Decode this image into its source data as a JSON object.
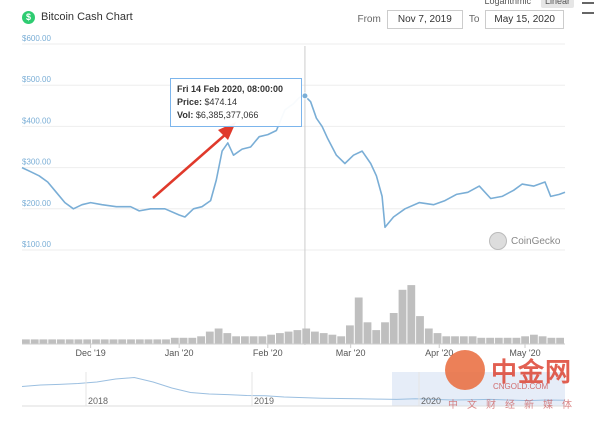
{
  "header": {
    "title": "Bitcoin Cash Chart",
    "logo_glyph": "$",
    "scale_options": [
      "Logarithmic",
      "Linear"
    ],
    "active_scale": "Linear",
    "from_label": "From",
    "to_label": "To",
    "from_value": "Nov 7, 2019",
    "to_value": "May 15, 2020"
  },
  "tooltip": {
    "date": "Fri 14 Feb 2020, 08:00:00",
    "price_label": "Price:",
    "price_value": "$474.14",
    "vol_label": "Vol:",
    "vol_value": "$6,385,377,066"
  },
  "watermark": {
    "coingecko": "CoinGecko",
    "cngold_name": "中金网",
    "cngold_url": "CNGOLD.COM",
    "cngold_slogan": "中文财经新媒体"
  },
  "colors": {
    "line": "#7aaed6",
    "volume": "#bfbfbf",
    "arrow": "#e0392b",
    "nav_mask": "#dbe5f5"
  },
  "chart_data": {
    "type": "line",
    "title": "Bitcoin Cash Chart",
    "ylim": [
      100,
      600
    ],
    "yticks": [
      100,
      200,
      300,
      400,
      500,
      600
    ],
    "ytick_labels": [
      "$100.00",
      "$200.00",
      "$300.00",
      "$400.00",
      "$500.00",
      "$600.00"
    ],
    "xticks": [
      "Dec '19",
      "Jan '20",
      "Feb '20",
      "Mar '20",
      "Apr '20",
      "May '20"
    ],
    "x_range": [
      "2019-11-07",
      "2020-05-15"
    ],
    "price_series": {
      "x": [
        "2019-11-07",
        "2019-11-10",
        "2019-11-13",
        "2019-11-16",
        "2019-11-19",
        "2019-11-22",
        "2019-11-25",
        "2019-11-28",
        "2019-12-01",
        "2019-12-05",
        "2019-12-10",
        "2019-12-15",
        "2019-12-18",
        "2019-12-22",
        "2019-12-27",
        "2020-01-01",
        "2020-01-03",
        "2020-01-06",
        "2020-01-09",
        "2020-01-12",
        "2020-01-14",
        "2020-01-16",
        "2020-01-18",
        "2020-01-20",
        "2020-01-23",
        "2020-01-26",
        "2020-01-29",
        "2020-02-01",
        "2020-02-04",
        "2020-02-07",
        "2020-02-10",
        "2020-02-12",
        "2020-02-14",
        "2020-02-16",
        "2020-02-18",
        "2020-02-20",
        "2020-02-22",
        "2020-02-25",
        "2020-02-28",
        "2020-03-02",
        "2020-03-05",
        "2020-03-08",
        "2020-03-10",
        "2020-03-12",
        "2020-03-13",
        "2020-03-16",
        "2020-03-20",
        "2020-03-25",
        "2020-03-30",
        "2020-04-03",
        "2020-04-07",
        "2020-04-11",
        "2020-04-15",
        "2020-04-19",
        "2020-04-23",
        "2020-04-27",
        "2020-04-30",
        "2020-05-04",
        "2020-05-08",
        "2020-05-10",
        "2020-05-13",
        "2020-05-15"
      ],
      "y": [
        300,
        290,
        280,
        265,
        240,
        215,
        200,
        210,
        215,
        210,
        205,
        205,
        195,
        200,
        200,
        185,
        180,
        200,
        205,
        220,
        270,
        340,
        360,
        330,
        345,
        350,
        375,
        380,
        390,
        440,
        455,
        470,
        474,
        460,
        420,
        400,
        370,
        330,
        310,
        330,
        340,
        310,
        280,
        230,
        155,
        180,
        200,
        215,
        210,
        220,
        235,
        240,
        255,
        225,
        230,
        245,
        260,
        255,
        265,
        230,
        235,
        240
      ]
    },
    "volume_series": {
      "values": [
        3,
        3,
        3,
        3,
        3,
        3,
        3,
        3,
        3,
        3,
        3,
        3,
        3,
        3,
        3,
        3,
        3,
        4,
        4,
        4,
        5,
        8,
        10,
        7,
        5,
        5,
        5,
        5,
        6,
        7,
        8,
        9,
        10,
        8,
        7,
        6,
        5,
        12,
        30,
        14,
        9,
        14,
        20,
        35,
        38,
        18,
        10,
        7,
        5,
        5,
        5,
        5,
        4,
        4,
        4,
        4,
        4,
        5,
        6,
        5,
        4,
        4
      ]
    },
    "navigator": {
      "xticks": [
        "2018",
        "2019",
        "2020"
      ]
    }
  }
}
